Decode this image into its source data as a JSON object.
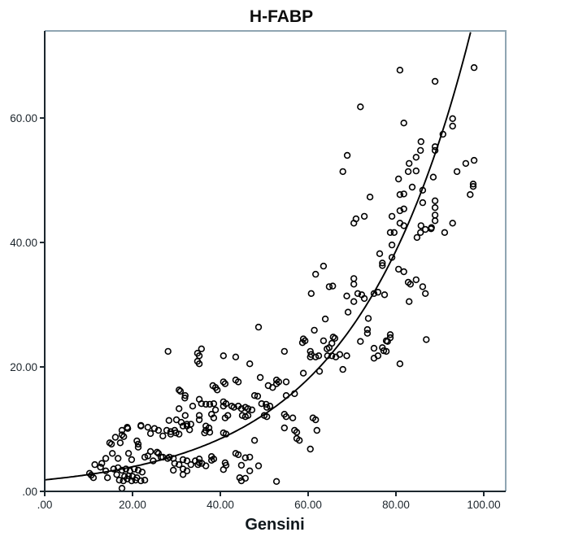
{
  "chart_data": {
    "type": "scatter",
    "title": "H-FABP",
    "xlabel": "Gensini",
    "ylabel": "",
    "grid": false,
    "legend": "none",
    "xlim": [
      0,
      105
    ],
    "ylim": [
      0,
      74
    ],
    "x_axis": {
      "label": "Gensini",
      "tick_values": [
        0,
        20,
        40,
        60,
        80,
        100
      ],
      "tick_labels": [
        ".00",
        "20.00",
        "40.00",
        "60.00",
        "80.00",
        "100.00"
      ]
    },
    "y_axis": {
      "label": "",
      "tick_values": [
        0,
        20,
        40,
        60
      ],
      "tick_labels": [
        ".00",
        "20.00",
        "40.00",
        "60.00"
      ]
    },
    "fit_curve": {
      "type": "exponential",
      "a": 1.85,
      "b": 0.038,
      "formula": "y = 1.85 * exp(0.038 * x)"
    },
    "colors": {
      "point_stroke": "#000000",
      "curve": "#000000",
      "axis": "#1c272e",
      "frame": "#8fa5b2",
      "tick_label": "#1b242b",
      "background": "#ffffff"
    },
    "marker": {
      "shape": "open-circle",
      "radius": 3.4,
      "stroke_width": 1.6
    },
    "points": [
      [
        10.2,
        2.9
      ],
      [
        10.6,
        2.6
      ],
      [
        11.1,
        2.2
      ],
      [
        11.4,
        4.3
      ],
      [
        12.7,
        3.9
      ],
      [
        13.0,
        4.5
      ],
      [
        13.9,
        5.3
      ],
      [
        13.9,
        3.3
      ],
      [
        14.3,
        2.2
      ],
      [
        14.8,
        7.8
      ],
      [
        15.2,
        7.6
      ],
      [
        15.4,
        6.1
      ],
      [
        15.7,
        3.6
      ],
      [
        16.1,
        8.7
      ],
      [
        16.4,
        2.7
      ],
      [
        16.7,
        5.3
      ],
      [
        16.7,
        3.8
      ],
      [
        17.0,
        1.8
      ],
      [
        17.2,
        7.8
      ],
      [
        17.6,
        9.8
      ],
      [
        17.6,
        9.1
      ],
      [
        17.6,
        3.4
      ],
      [
        17.6,
        0.5
      ],
      [
        17.9,
        1.7
      ],
      [
        18.0,
        8.8
      ],
      [
        18.2,
        2.4
      ],
      [
        18.5,
        3.6
      ],
      [
        18.8,
        10.3
      ],
      [
        18.8,
        2.0
      ],
      [
        18.9,
        10.1
      ],
      [
        19.1,
        6.1
      ],
      [
        19.1,
        2.5
      ],
      [
        19.4,
        3.3
      ],
      [
        19.8,
        5.1
      ],
      [
        19.8,
        1.7
      ],
      [
        20.0,
        2.4
      ],
      [
        20.4,
        3.6
      ],
      [
        20.7,
        1.8
      ],
      [
        21.0,
        8.1
      ],
      [
        21.0,
        2.2
      ],
      [
        21.3,
        7.6
      ],
      [
        21.3,
        7.1
      ],
      [
        21.3,
        3.4
      ],
      [
        21.9,
        10.6
      ],
      [
        21.9,
        10.5
      ],
      [
        21.9,
        1.7
      ],
      [
        22.2,
        3.1
      ],
      [
        22.8,
        5.5
      ],
      [
        22.8,
        1.8
      ],
      [
        23.5,
        10.3
      ],
      [
        23.5,
        5.7
      ],
      [
        24.1,
        9.3
      ],
      [
        24.1,
        6.4
      ],
      [
        24.7,
        4.9
      ],
      [
        25.0,
        10.1
      ],
      [
        25.6,
        6.3
      ],
      [
        25.9,
        9.8
      ],
      [
        25.9,
        6.1
      ],
      [
        26.5,
        5.5
      ],
      [
        26.9,
        8.9
      ],
      [
        26.9,
        5.5
      ],
      [
        27.8,
        9.8
      ],
      [
        28.0,
        5.3
      ],
      [
        28.1,
        22.5
      ],
      [
        28.3,
        11.4
      ],
      [
        28.4,
        5.5
      ],
      [
        28.7,
        9.6
      ],
      [
        28.7,
        9.2
      ],
      [
        29.3,
        5.3
      ],
      [
        29.3,
        3.4
      ],
      [
        29.6,
        9.8
      ],
      [
        29.6,
        4.5
      ],
      [
        29.9,
        9.4
      ],
      [
        30.0,
        11.5
      ],
      [
        30.6,
        16.3
      ],
      [
        30.6,
        13.3
      ],
      [
        30.6,
        9.2
      ],
      [
        30.6,
        4.3
      ],
      [
        30.9,
        16.1
      ],
      [
        31.1,
        11.1
      ],
      [
        31.5,
        10.5
      ],
      [
        31.5,
        5.1
      ],
      [
        31.5,
        3.6
      ],
      [
        31.5,
        2.7
      ],
      [
        31.9,
        15.0
      ],
      [
        32.0,
        15.4
      ],
      [
        32.0,
        12.2
      ],
      [
        32.4,
        10.8
      ],
      [
        32.4,
        10.5
      ],
      [
        32.4,
        4.9
      ],
      [
        32.4,
        3.3
      ],
      [
        33.0,
        9.9
      ],
      [
        33.3,
        10.8
      ],
      [
        33.3,
        4.3
      ],
      [
        33.7,
        13.7
      ],
      [
        34.3,
        4.9
      ],
      [
        34.8,
        22.2
      ],
      [
        34.8,
        20.9
      ],
      [
        34.9,
        4.3
      ],
      [
        35.2,
        21.8
      ],
      [
        35.2,
        20.5
      ],
      [
        35.2,
        14.8
      ],
      [
        35.2,
        12.2
      ],
      [
        35.2,
        11.5
      ],
      [
        35.2,
        5.2
      ],
      [
        35.2,
        4.6
      ],
      [
        35.7,
        22.9
      ],
      [
        35.7,
        14.1
      ],
      [
        35.8,
        4.5
      ],
      [
        36.4,
        9.4
      ],
      [
        36.7,
        14.0
      ],
      [
        36.7,
        10.5
      ],
      [
        36.7,
        9.8
      ],
      [
        36.7,
        4.1
      ],
      [
        37.4,
        10.2
      ],
      [
        37.6,
        14.0
      ],
      [
        37.6,
        9.5
      ],
      [
        38.0,
        12.4
      ],
      [
        38.0,
        5.6
      ],
      [
        38.0,
        5.0
      ],
      [
        38.3,
        17.0
      ],
      [
        38.5,
        14.1
      ],
      [
        38.5,
        11.8
      ],
      [
        38.5,
        5.2
      ],
      [
        38.9,
        16.7
      ],
      [
        38.9,
        13.1
      ],
      [
        39.3,
        16.3
      ],
      [
        40.7,
        21.8
      ],
      [
        40.7,
        17.6
      ],
      [
        40.7,
        14.4
      ],
      [
        40.7,
        13.7
      ],
      [
        40.7,
        9.4
      ],
      [
        40.7,
        3.5
      ],
      [
        41.1,
        17.3
      ],
      [
        41.1,
        11.8
      ],
      [
        41.1,
        4.6
      ],
      [
        41.3,
        14.1
      ],
      [
        41.3,
        9.2
      ],
      [
        41.3,
        4.2
      ],
      [
        41.7,
        12.2
      ],
      [
        42.6,
        13.7
      ],
      [
        43.1,
        13.5
      ],
      [
        43.5,
        21.6
      ],
      [
        43.5,
        17.9
      ],
      [
        43.5,
        6.1
      ],
      [
        44.1,
        17.6
      ],
      [
        44.1,
        13.7
      ],
      [
        44.1,
        5.9
      ],
      [
        44.4,
        2.2
      ],
      [
        44.8,
        13.3
      ],
      [
        44.8,
        4.2
      ],
      [
        44.8,
        1.7
      ],
      [
        45.0,
        12.2
      ],
      [
        45.7,
        13.5
      ],
      [
        45.7,
        12.0
      ],
      [
        45.7,
        5.4
      ],
      [
        45.7,
        2.1
      ],
      [
        46.3,
        13.3
      ],
      [
        46.3,
        12.2
      ],
      [
        46.7,
        20.5
      ],
      [
        46.7,
        5.5
      ],
      [
        46.7,
        3.3
      ],
      [
        47.2,
        13.1
      ],
      [
        47.8,
        15.4
      ],
      [
        47.8,
        8.2
      ],
      [
        48.5,
        15.3
      ],
      [
        48.7,
        26.4
      ],
      [
        48.7,
        4.1
      ],
      [
        49.1,
        18.3
      ],
      [
        49.4,
        14.1
      ],
      [
        50.0,
        12.2
      ],
      [
        50.4,
        14.0
      ],
      [
        50.6,
        13.5
      ],
      [
        50.6,
        12.0
      ],
      [
        50.9,
        17.0
      ],
      [
        51.3,
        13.7
      ],
      [
        51.9,
        16.7
      ],
      [
        52.8,
        17.9
      ],
      [
        52.8,
        17.3
      ],
      [
        52.8,
        1.6
      ],
      [
        53.3,
        17.6
      ],
      [
        54.6,
        22.5
      ],
      [
        54.6,
        12.4
      ],
      [
        54.6,
        10.2
      ],
      [
        55.0,
        17.6
      ],
      [
        55.0,
        15.4
      ],
      [
        55.0,
        12.0
      ],
      [
        56.5,
        11.8
      ],
      [
        56.9,
        15.7
      ],
      [
        56.9,
        9.8
      ],
      [
        57.4,
        9.5
      ],
      [
        57.4,
        8.5
      ],
      [
        58.0,
        8.2
      ],
      [
        58.7,
        23.9
      ],
      [
        58.9,
        24.5
      ],
      [
        58.9,
        19.0
      ],
      [
        59.3,
        24.2
      ],
      [
        60.5,
        22.5
      ],
      [
        60.5,
        21.6
      ],
      [
        60.5,
        6.8
      ],
      [
        60.7,
        31.8
      ],
      [
        60.7,
        22.0
      ],
      [
        61.1,
        11.8
      ],
      [
        61.4,
        25.9
      ],
      [
        61.7,
        34.9
      ],
      [
        61.7,
        21.6
      ],
      [
        61.7,
        11.5
      ],
      [
        62.0,
        9.8
      ],
      [
        62.4,
        21.8
      ],
      [
        62.6,
        19.3
      ],
      [
        63.5,
        36.2
      ],
      [
        63.5,
        24.2
      ],
      [
        63.9,
        27.7
      ],
      [
        64.3,
        22.9
      ],
      [
        64.4,
        21.8
      ],
      [
        64.8,
        32.9
      ],
      [
        64.8,
        23.1
      ],
      [
        65.4,
        23.8
      ],
      [
        65.4,
        21.8
      ],
      [
        65.6,
        33.0
      ],
      [
        65.7,
        24.8
      ],
      [
        66.1,
        24.6
      ],
      [
        66.3,
        21.6
      ],
      [
        67.2,
        22.0
      ],
      [
        67.9,
        51.4
      ],
      [
        67.9,
        19.6
      ],
      [
        68.8,
        31.4
      ],
      [
        68.8,
        21.8
      ],
      [
        68.9,
        54.0
      ],
      [
        69.1,
        28.8
      ],
      [
        70.4,
        43.1
      ],
      [
        70.4,
        34.2
      ],
      [
        70.4,
        33.3
      ],
      [
        70.4,
        30.5
      ],
      [
        70.9,
        43.8
      ],
      [
        71.3,
        31.8
      ],
      [
        71.9,
        61.8
      ],
      [
        71.9,
        24.1
      ],
      [
        72.2,
        31.6
      ],
      [
        72.8,
        44.2
      ],
      [
        72.8,
        31.0
      ],
      [
        73.5,
        26.0
      ],
      [
        73.5,
        25.4
      ],
      [
        73.7,
        27.8
      ],
      [
        74.1,
        47.3
      ],
      [
        75.0,
        31.8
      ],
      [
        75.0,
        23.0
      ],
      [
        75.0,
        21.4
      ],
      [
        75.9,
        32.0
      ],
      [
        75.9,
        21.8
      ],
      [
        76.3,
        38.2
      ],
      [
        76.9,
        36.7
      ],
      [
        76.9,
        36.3
      ],
      [
        76.9,
        23.1
      ],
      [
        77.2,
        22.6
      ],
      [
        77.4,
        31.6
      ],
      [
        77.8,
        24.2
      ],
      [
        77.8,
        22.5
      ],
      [
        78.1,
        24.1
      ],
      [
        78.7,
        41.6
      ],
      [
        78.7,
        25.2
      ],
      [
        78.7,
        24.7
      ],
      [
        79.1,
        44.2
      ],
      [
        79.1,
        39.6
      ],
      [
        79.1,
        37.6
      ],
      [
        79.6,
        41.6
      ],
      [
        80.6,
        50.2
      ],
      [
        80.6,
        35.7
      ],
      [
        80.9,
        67.7
      ],
      [
        80.9,
        47.7
      ],
      [
        80.9,
        45.1
      ],
      [
        80.9,
        43.1
      ],
      [
        80.9,
        20.5
      ],
      [
        81.8,
        59.2
      ],
      [
        81.8,
        47.8
      ],
      [
        81.8,
        45.4
      ],
      [
        81.8,
        42.7
      ],
      [
        81.8,
        35.3
      ],
      [
        82.8,
        51.4
      ],
      [
        82.8,
        33.6
      ],
      [
        83.0,
        52.7
      ],
      [
        83.0,
        30.5
      ],
      [
        83.3,
        33.3
      ],
      [
        83.7,
        48.9
      ],
      [
        84.6,
        53.7
      ],
      [
        84.6,
        51.5
      ],
      [
        84.6,
        34.0
      ],
      [
        84.8,
        40.8
      ],
      [
        85.6,
        54.8
      ],
      [
        85.6,
        41.6
      ],
      [
        85.7,
        56.2
      ],
      [
        85.7,
        42.7
      ],
      [
        86.1,
        48.4
      ],
      [
        86.1,
        46.4
      ],
      [
        86.1,
        32.9
      ],
      [
        86.7,
        42.1
      ],
      [
        86.7,
        31.8
      ],
      [
        86.9,
        24.4
      ],
      [
        88.0,
        42.2
      ],
      [
        88.1,
        42.4
      ],
      [
        88.5,
        50.5
      ],
      [
        88.9,
        65.9
      ],
      [
        88.9,
        55.4
      ],
      [
        88.9,
        54.8
      ],
      [
        88.9,
        46.7
      ],
      [
        88.9,
        45.6
      ],
      [
        88.9,
        44.4
      ],
      [
        88.9,
        43.5
      ],
      [
        90.7,
        57.4
      ],
      [
        91.1,
        41.6
      ],
      [
        92.9,
        59.9
      ],
      [
        92.9,
        58.7
      ],
      [
        92.9,
        43.1
      ],
      [
        93.9,
        51.4
      ],
      [
        95.9,
        52.7
      ],
      [
        96.9,
        47.7
      ],
      [
        97.6,
        49.4
      ],
      [
        97.6,
        49.0
      ],
      [
        97.8,
        68.1
      ],
      [
        97.8,
        53.2
      ]
    ]
  }
}
